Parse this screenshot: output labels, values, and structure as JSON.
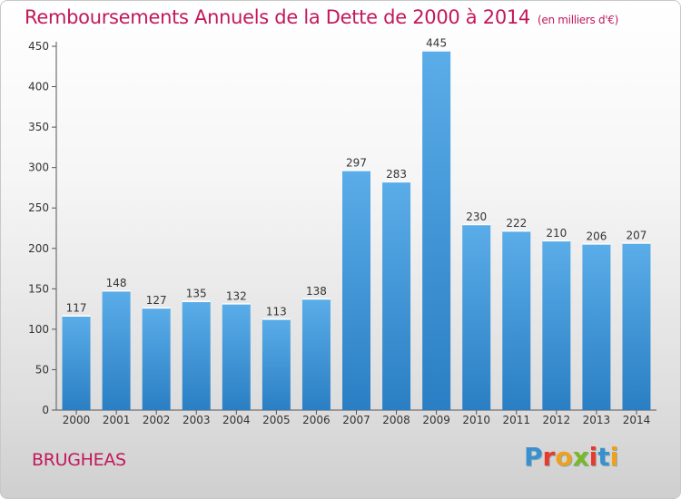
{
  "header": {
    "title": "Remboursements Annuels de la Dette de 2000 à 2014",
    "unit": "(en milliers d'€)"
  },
  "footer": {
    "town": "BRUGHEAS",
    "brand_letters": [
      "P",
      "r",
      "o",
      "x",
      "i",
      "t",
      "i"
    ],
    "brand_colors": [
      "#3a8fd0",
      "#e83a2c",
      "#f0a01e",
      "#7ab828",
      "#e83a2c",
      "#3a8fd0",
      "#f0a01e"
    ]
  },
  "colors": {
    "accent": "#c2185b",
    "bar_top": "#5aade8",
    "bar_bottom": "#2a7fc4"
  },
  "chart_data": {
    "type": "bar",
    "categories": [
      "2000",
      "2001",
      "2002",
      "2003",
      "2004",
      "2005",
      "2006",
      "2007",
      "2008",
      "2009",
      "2010",
      "2011",
      "2012",
      "2013",
      "2014"
    ],
    "values": [
      117,
      148,
      127,
      135,
      132,
      113,
      138,
      297,
      283,
      445,
      230,
      222,
      210,
      206,
      207
    ],
    "title": "Remboursements Annuels de la Dette de 2000 à 2014",
    "ylim": [
      0,
      450
    ],
    "yticks": [
      0,
      50,
      100,
      150,
      200,
      250,
      300,
      350,
      400,
      450
    ],
    "grid": false
  }
}
